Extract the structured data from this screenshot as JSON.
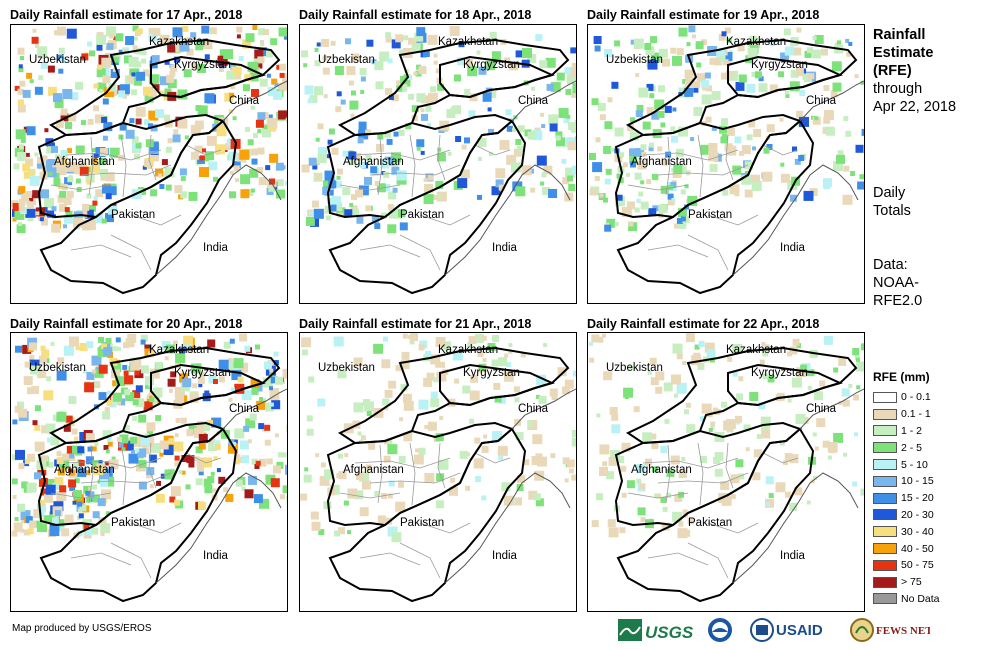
{
  "panels": [
    {
      "title": "Daily Rainfall estimate for 17 Apr., 2018",
      "date": "17 Apr.",
      "intensity": "high"
    },
    {
      "title": "Daily Rainfall estimate for 18 Apr., 2018",
      "date": "18 Apr.",
      "intensity": "medium"
    },
    {
      "title": "Daily Rainfall estimate for 19 Apr., 2018",
      "date": "19 Apr.",
      "intensity": "medium"
    },
    {
      "title": "Daily Rainfall estimate for 20 Apr., 2018",
      "date": "20 Apr.",
      "intensity": "high"
    },
    {
      "title": "Daily Rainfall estimate for 21 Apr., 2018",
      "date": "21 Apr.",
      "intensity": "low"
    },
    {
      "title": "Daily Rainfall estimate for 22 Apr., 2018",
      "date": "22 Apr.",
      "intensity": "low"
    }
  ],
  "country_labels": {
    "kazakhstan": "Kazakhstan",
    "uzbekistan": "Uzbekistan",
    "kyrgyzstan": "Kyrgyzstan",
    "china": "China",
    "afghanistan": "Afghanistan",
    "pakistan": "Pakistan",
    "india": "India"
  },
  "side_panel": {
    "title_line1": "Rainfall",
    "title_line2": "Estimate",
    "title_line3": "(RFE)",
    "through": "through",
    "date": "Apr 22, 2018",
    "daily": "Daily",
    "totals": "Totals",
    "data_label": "Data:",
    "source_line1": "NOAA-",
    "source_line2": "RFE2.0"
  },
  "legend": {
    "title": "RFE (mm)",
    "items": [
      {
        "label": "0 - 0.1",
        "color": "#ffffff"
      },
      {
        "label": "0.1 - 1",
        "color": "#ead9b9"
      },
      {
        "label": "1 - 2",
        "color": "#c7eec0"
      },
      {
        "label": "2 - 5",
        "color": "#7ee27a"
      },
      {
        "label": "5 - 10",
        "color": "#b9f2f4"
      },
      {
        "label": "10 - 15",
        "color": "#79b6ee"
      },
      {
        "label": "15 - 20",
        "color": "#3f8fe8"
      },
      {
        "label": "20 - 30",
        "color": "#1f58d8"
      },
      {
        "label": "30 - 40",
        "color": "#f7df80"
      },
      {
        "label": "40 - 50",
        "color": "#f7a20a"
      },
      {
        "label": "50 - 75",
        "color": "#e63311"
      },
      {
        "label": "> 75",
        "color": "#a51a1a"
      },
      {
        "label": "No Data",
        "color": "#999999"
      }
    ]
  },
  "footer": {
    "credit": "Map produced by USGS/EROS"
  },
  "logos": {
    "usgs": "USGS",
    "usaid": "USAID",
    "fewsnet": "FEWS NET"
  }
}
